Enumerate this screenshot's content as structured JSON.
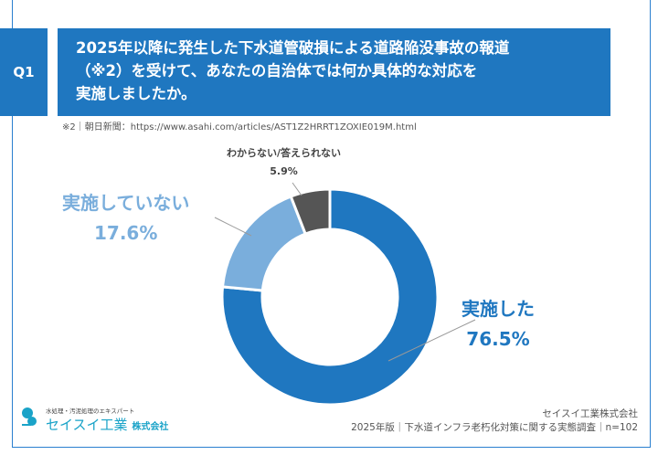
{
  "question": {
    "label": "Q1",
    "text_lines": [
      "2025年以降に発生した下水道管破損による道路陥没事故の報道",
      "（※2）を受けて、あなたの自治体では何か具体的な対応を",
      "実施しましたか。"
    ]
  },
  "note": "※2｜朝日新聞：https://www.asahi.com/articles/AST1Z2HRRT1ZOXIE019M.html",
  "chart_data": {
    "type": "pie",
    "donut": true,
    "categories": [
      "実施した",
      "実施していない",
      "わからない/答えられない"
    ],
    "values": [
      76.5,
      17.6,
      5.9
    ],
    "value_labels": [
      "76.5%",
      "17.6%",
      "5.9%"
    ],
    "colors": [
      "#1f77c0",
      "#7aaedc",
      "#555555"
    ]
  },
  "footer": {
    "logo_tagline": "水処理・汚泥処理のエキスパート",
    "logo_name": "セイスイ工業",
    "logo_suffix": "株式会社",
    "company": "セイスイ工業株式会社",
    "survey": "2025年版｜下水道インフラ老朽化対策に関する実態調査｜n=102"
  }
}
